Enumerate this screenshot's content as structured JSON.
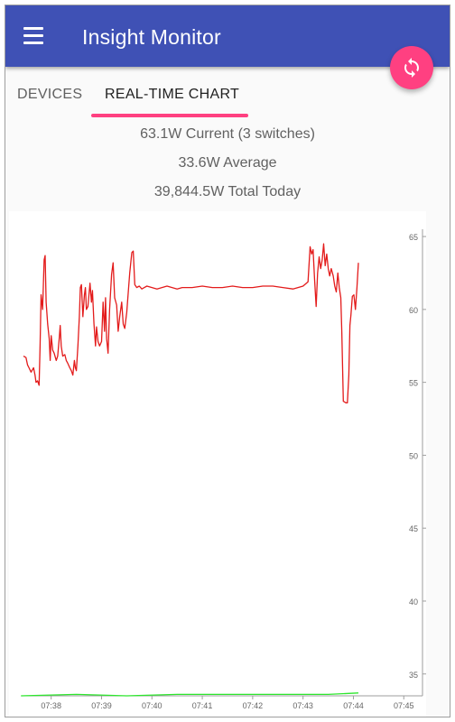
{
  "app": {
    "title": "Insight Monitor"
  },
  "icons": {
    "menu": "menu-icon",
    "refresh": "refresh-icon"
  },
  "colors": {
    "primary": "#3f51b5",
    "accent": "#ff4081",
    "power_series": "#e31b1b",
    "baseline_series": "#2ee62e"
  },
  "tabs": [
    {
      "label": "DEVICES",
      "active": false
    },
    {
      "label": "REAL-TIME CHART",
      "active": true
    }
  ],
  "stats": {
    "current": "63.1W Current (3 switches)",
    "average": "33.6W Average",
    "total": "39,844.5W Total Today"
  },
  "chart_data": {
    "type": "line",
    "title": "",
    "xlabel": "",
    "ylabel": "",
    "ylim": [
      33.5,
      65.5
    ],
    "y_ticks": [
      35,
      40,
      45,
      50,
      55,
      60,
      65
    ],
    "x_tick_labels": [
      "07:38",
      "07:39",
      "07:40",
      "07:41",
      "07:42",
      "07:43",
      "07:44",
      "07:45"
    ],
    "x_tick_minutes": [
      38,
      39,
      40,
      41,
      42,
      43,
      44,
      45
    ],
    "xlim_minutes": [
      37.45,
      45.3
    ],
    "y_axis_position": "right",
    "grid": false,
    "series": [
      {
        "color": "#e31b1b",
        "points": [
          [
            37.45,
            56.8
          ],
          [
            37.5,
            56.7
          ],
          [
            37.53,
            56.2
          ],
          [
            37.56,
            56.0
          ],
          [
            37.6,
            55.7
          ],
          [
            37.65,
            56.0
          ],
          [
            37.68,
            55.5
          ],
          [
            37.7,
            55.0
          ],
          [
            37.73,
            55.1
          ],
          [
            37.76,
            54.8
          ],
          [
            37.78,
            57.5
          ],
          [
            37.8,
            61.0
          ],
          [
            37.83,
            60.0
          ],
          [
            37.86,
            63.4
          ],
          [
            37.88,
            63.7
          ],
          [
            37.9,
            60.5
          ],
          [
            37.93,
            59.0
          ],
          [
            37.96,
            58.0
          ],
          [
            37.98,
            56.5
          ],
          [
            38.0,
            58.2
          ],
          [
            38.03,
            57.2
          ],
          [
            38.06,
            57.0
          ],
          [
            38.1,
            56.5
          ],
          [
            38.13,
            56.8
          ],
          [
            38.16,
            58.0
          ],
          [
            38.18,
            58.9
          ],
          [
            38.2,
            57.5
          ],
          [
            38.23,
            56.8
          ],
          [
            38.27,
            56.9
          ],
          [
            38.3,
            56.5
          ],
          [
            38.33,
            56.3
          ],
          [
            38.37,
            56.0
          ],
          [
            38.4,
            55.8
          ],
          [
            38.43,
            55.5
          ],
          [
            38.46,
            56.5
          ],
          [
            38.48,
            56.0
          ],
          [
            38.5,
            55.8
          ],
          [
            38.53,
            57.5
          ],
          [
            38.56,
            59.5
          ],
          [
            38.58,
            61.5
          ],
          [
            38.6,
            61.7
          ],
          [
            38.63,
            59.5
          ],
          [
            38.66,
            61.0
          ],
          [
            38.68,
            61.5
          ],
          [
            38.7,
            60.0
          ],
          [
            38.73,
            60.2
          ],
          [
            38.77,
            61.8
          ],
          [
            38.8,
            60.5
          ],
          [
            38.82,
            61.3
          ],
          [
            38.85,
            59.0
          ],
          [
            38.88,
            57.5
          ],
          [
            38.9,
            58.8
          ],
          [
            38.93,
            57.8
          ],
          [
            38.96,
            57.5
          ],
          [
            39.0,
            57.8
          ],
          [
            39.03,
            60.5
          ],
          [
            39.06,
            58.5
          ],
          [
            39.08,
            60.8
          ],
          [
            39.1,
            58.0
          ],
          [
            39.13,
            57.0
          ],
          [
            39.16,
            60.0
          ],
          [
            39.2,
            62.4
          ],
          [
            39.23,
            63.2
          ],
          [
            39.26,
            60.8
          ],
          [
            39.3,
            60.3
          ],
          [
            39.33,
            58.5
          ],
          [
            39.36,
            59.5
          ],
          [
            39.4,
            60.5
          ],
          [
            39.43,
            59.0
          ],
          [
            39.46,
            58.7
          ],
          [
            39.5,
            59.8
          ],
          [
            39.53,
            61.2
          ],
          [
            39.56,
            62.5
          ],
          [
            39.6,
            63.9
          ],
          [
            39.63,
            64.0
          ],
          [
            39.66,
            61.7
          ],
          [
            39.7,
            61.5
          ],
          [
            39.75,
            61.6
          ],
          [
            39.8,
            61.4
          ],
          [
            39.85,
            61.5
          ],
          [
            39.9,
            61.6
          ],
          [
            40.0,
            61.5
          ],
          [
            40.1,
            61.4
          ],
          [
            40.2,
            61.5
          ],
          [
            40.3,
            61.6
          ],
          [
            40.4,
            61.5
          ],
          [
            40.5,
            61.4
          ],
          [
            40.6,
            61.5
          ],
          [
            40.8,
            61.5
          ],
          [
            41.0,
            61.6
          ],
          [
            41.2,
            61.5
          ],
          [
            41.4,
            61.5
          ],
          [
            41.6,
            61.6
          ],
          [
            41.8,
            61.5
          ],
          [
            42.0,
            61.5
          ],
          [
            42.2,
            61.6
          ],
          [
            42.4,
            61.6
          ],
          [
            42.6,
            61.5
          ],
          [
            42.8,
            61.4
          ],
          [
            43.0,
            61.6
          ],
          [
            43.1,
            61.9
          ],
          [
            43.14,
            64.3
          ],
          [
            43.17,
            63.8
          ],
          [
            43.2,
            64.1
          ],
          [
            43.23,
            62.0
          ],
          [
            43.26,
            60.2
          ],
          [
            43.29,
            62.5
          ],
          [
            43.32,
            63.6
          ],
          [
            43.35,
            62.8
          ],
          [
            43.38,
            63.4
          ],
          [
            43.41,
            64.5
          ],
          [
            43.44,
            63.0
          ],
          [
            43.47,
            63.8
          ],
          [
            43.5,
            62.8
          ],
          [
            43.53,
            62.3
          ],
          [
            43.56,
            62.8
          ],
          [
            43.6,
            62.3
          ],
          [
            43.63,
            61.6
          ],
          [
            43.66,
            61.2
          ],
          [
            43.69,
            62.5
          ],
          [
            43.72,
            61.5
          ],
          [
            43.75,
            60.8
          ],
          [
            43.77,
            58.5
          ],
          [
            43.8,
            53.7
          ],
          [
            43.85,
            53.6
          ],
          [
            43.88,
            53.6
          ],
          [
            43.91,
            55.5
          ],
          [
            43.93,
            58.9
          ],
          [
            43.95,
            59.6
          ],
          [
            43.98,
            60.9
          ],
          [
            44.01,
            61.0
          ],
          [
            44.04,
            60.0
          ],
          [
            44.07,
            61.5
          ],
          [
            44.1,
            63.2
          ]
        ]
      },
      {
        "color": "#2ee62e",
        "points": [
          [
            37.4,
            33.5
          ],
          [
            38.5,
            33.6
          ],
          [
            39.5,
            33.5
          ],
          [
            40.5,
            33.6
          ],
          [
            41.5,
            33.6
          ],
          [
            42.5,
            33.6
          ],
          [
            43.5,
            33.6
          ],
          [
            44.1,
            33.7
          ]
        ]
      }
    ]
  }
}
